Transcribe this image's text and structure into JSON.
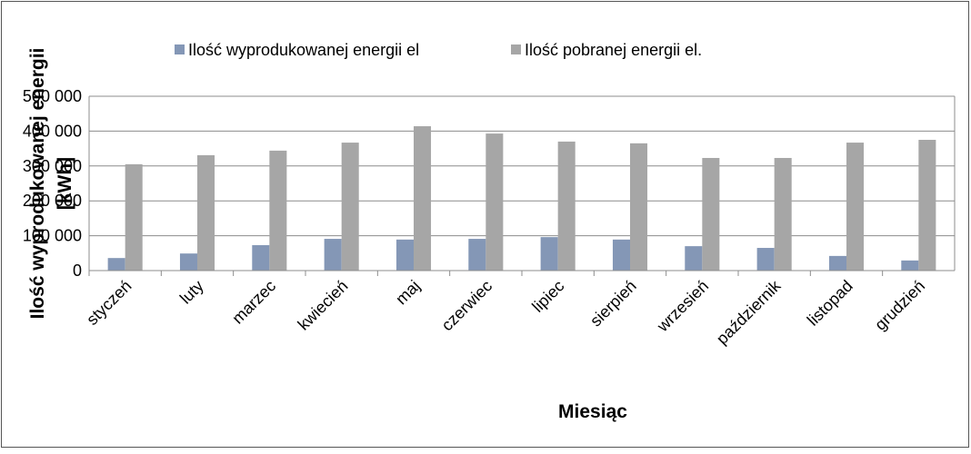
{
  "chart_data": {
    "type": "bar",
    "categories": [
      "styczeń",
      "luty",
      "marzec",
      "kwiecień",
      "maj",
      "czerwiec",
      "lipiec",
      "sierpień",
      "wrzesień",
      "październik",
      "listopad",
      "grudzień"
    ],
    "series": [
      {
        "name": "Ilość wyprodukowanej energii el",
        "color": "#8497b6",
        "values": [
          36000,
          49000,
          73000,
          91000,
          89000,
          91000,
          96000,
          89000,
          70000,
          65000,
          42000,
          29000
        ]
      },
      {
        "name": "Ilość pobranej energii el.",
        "color": "#a6a6a6",
        "values": [
          305000,
          331000,
          344000,
          367000,
          414000,
          393000,
          370000,
          365000,
          323000,
          323000,
          367000,
          375000
        ]
      }
    ],
    "ylim": [
      0,
      500000
    ],
    "yticks": [
      0,
      {
        "value": 100000,
        "label": "100 000"
      },
      {
        "value": 200000,
        "label": "200 000"
      },
      {
        "value": 300000,
        "label": "300 000"
      },
      {
        "value": 400000,
        "label": "400 000"
      },
      {
        "value": 500000,
        "label": "500 000"
      }
    ],
    "grid": true,
    "xlabel": "Miesiąc",
    "ylabel": [
      "Ilość wyprodukowanej energii",
      "[kWh]"
    ],
    "legend": "top"
  }
}
